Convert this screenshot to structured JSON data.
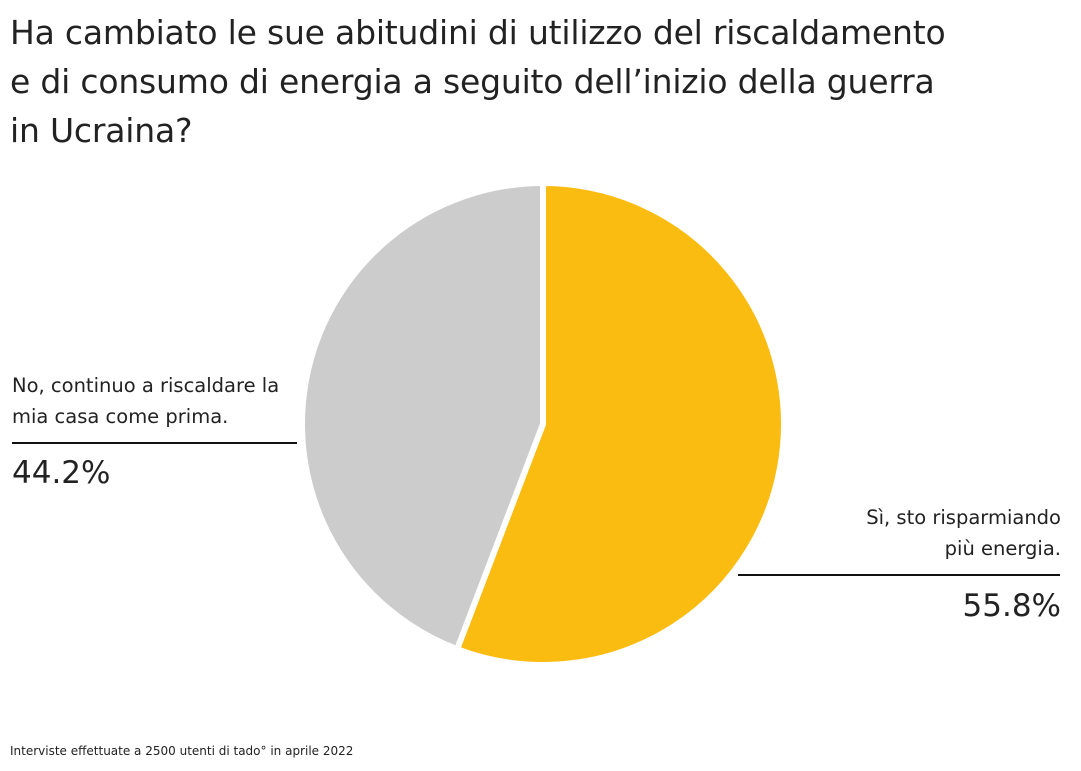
{
  "chart_data": {
    "type": "pie",
    "title": "Ha cambiato le sue abitudini di utilizzo del riscaldamento e di consumo di energia a seguito dell’inizio della guerra in Ucraina?",
    "title_lines": [
      "Ha cambiato le sue abitudini di utilizzo del riscaldamento",
      "e di consumo di energia a seguito dell’inizio della guerra",
      "in Ucraina?"
    ],
    "slices": [
      {
        "label": "Sì, sto risparmiando più energia.",
        "label_lines": [
          "Sì, sto risparmiando",
          "più energia."
        ],
        "value": 55.8,
        "value_label": "55.8%",
        "color": "#FBBC12"
      },
      {
        "label": "No, continuo a riscaldare la mia casa come prima.",
        "label_lines": [
          "No, continuo a riscaldare la",
          "mia casa come prima."
        ],
        "value": 44.2,
        "value_label": "44.2%",
        "color": "#CCCCCC"
      }
    ],
    "start_angle": "12 o'clock",
    "direction": "clockwise",
    "legend": "none",
    "footnote": "Interviste effettuate a 2500 utenti di tado° in aprile 2022"
  }
}
